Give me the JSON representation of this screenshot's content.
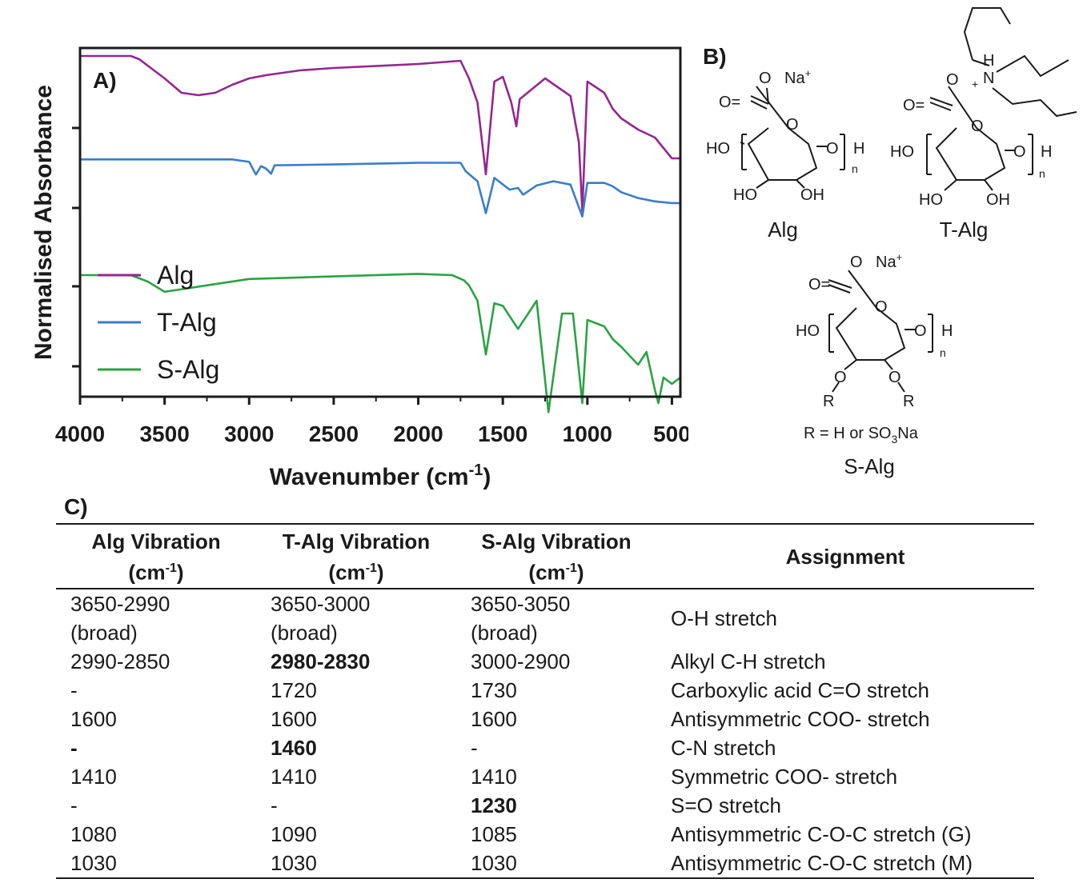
{
  "panel_labels": {
    "a": "A)",
    "b": "B)",
    "c": "C)"
  },
  "chart_data": {
    "type": "line",
    "title": "",
    "xlabel": "Wavenumber (cm-1)",
    "ylabel": "Normalised Absorbance",
    "xlim": [
      4000,
      450
    ],
    "x_ticks": [
      "4000",
      "3500",
      "3000",
      "2500",
      "2000",
      "1500",
      "1000",
      "500"
    ],
    "legend_position": "left-bottom",
    "series": [
      {
        "name": "Alg",
        "color": "#93278f",
        "x": [
          4000,
          3700,
          3650,
          3500,
          3400,
          3300,
          3200,
          3100,
          3000,
          2900,
          2700,
          2500,
          2000,
          1750,
          1700,
          1650,
          1600,
          1550,
          1500,
          1450,
          1420,
          1400,
          1250,
          1100,
          1050,
          1030,
          1000,
          900,
          850,
          800,
          700,
          600,
          500,
          450
        ],
        "y": [
          0.99,
          0.99,
          0.97,
          0.85,
          0.76,
          0.745,
          0.76,
          0.81,
          0.85,
          0.87,
          0.9,
          0.915,
          0.94,
          0.96,
          0.85,
          0.7,
          0.25,
          0.83,
          0.86,
          0.7,
          0.55,
          0.72,
          0.85,
          0.74,
          0.45,
          0.02,
          0.83,
          0.76,
          0.66,
          0.6,
          0.53,
          0.48,
          0.35,
          0.35
        ]
      },
      {
        "name": "T-Alg",
        "color": "#3a7dc9",
        "x": [
          4000,
          3500,
          3100,
          3000,
          2960,
          2930,
          2900,
          2870,
          2850,
          2500,
          2000,
          1750,
          1720,
          1650,
          1600,
          1550,
          1460,
          1410,
          1380,
          1300,
          1200,
          1100,
          1030,
          1000,
          900,
          850,
          800,
          700,
          600,
          500,
          450
        ],
        "y": [
          0.74,
          0.74,
          0.74,
          0.71,
          0.56,
          0.66,
          0.63,
          0.57,
          0.67,
          0.68,
          0.7,
          0.7,
          0.6,
          0.48,
          0.1,
          0.52,
          0.38,
          0.4,
          0.32,
          0.43,
          0.48,
          0.44,
          0.06,
          0.46,
          0.46,
          0.42,
          0.35,
          0.28,
          0.24,
          0.22,
          0.22
        ]
      },
      {
        "name": "S-Alg",
        "color": "#2aa342",
        "x": [
          4000,
          3700,
          3600,
          3500,
          3400,
          3200,
          3000,
          2500,
          2000,
          1800,
          1730,
          1700,
          1650,
          1600,
          1550,
          1500,
          1410,
          1300,
          1230,
          1150,
          1085,
          1030,
          1000,
          900,
          850,
          800,
          700,
          650,
          600,
          580,
          550,
          500,
          450
        ],
        "y": [
          0.5,
          0.5,
          0.45,
          0.37,
          0.39,
          0.43,
          0.47,
          0.49,
          0.51,
          0.5,
          0.46,
          0.42,
          0.3,
          -0.12,
          0.28,
          0.26,
          0.08,
          0.3,
          -0.57,
          0.2,
          0.2,
          -0.5,
          0.15,
          0.1,
          0.0,
          -0.06,
          -0.2,
          -0.1,
          -0.4,
          -0.5,
          -0.3,
          -0.35,
          -0.3
        ]
      }
    ]
  },
  "structures": {
    "alg": {
      "name": "Alg",
      "o_minus": "O",
      "na": "Na",
      "na_sup": "+",
      "o_eq": "O=",
      "ho_left": "HO",
      "o_h": "O",
      "h": "H",
      "n": "n",
      "ring_o": "O",
      "ho_bottom": "HO",
      "oh_bottom": "OH"
    },
    "talg": {
      "name": "T-Alg",
      "o_minus": "O",
      "o_eq": "O=",
      "ho_left": "HO",
      "o_h": "O",
      "h": "H",
      "n": "n",
      "ring_o": "O",
      "ho_bottom": "HO",
      "oh_bottom": "OH",
      "amm_h": "H",
      "amm_n": "N",
      "amm_plus": "+"
    },
    "salg": {
      "name": "S-Alg",
      "o_minus": "O",
      "na": "Na",
      "na_sup": "+",
      "o_eq": "O=",
      "ho_left": "HO",
      "o_h": "O",
      "h": "H",
      "n": "n",
      "ring_o": "O",
      "o_left": "O",
      "o_right": "O",
      "r_left": "R",
      "r_right": "R",
      "r_def_a": "R = H or SO",
      "r_def_sub": "3",
      "r_def_b": "Na"
    }
  },
  "table": {
    "headers": [
      {
        "line1": "Alg Vibration",
        "line2a": "(cm",
        "sup": "-1",
        "line2b": ")"
      },
      {
        "line1": "T-Alg Vibration",
        "line2a": "(cm",
        "sup": "-1",
        "line2b": ")"
      },
      {
        "line1": "S-Alg Vibration",
        "line2a": "(cm",
        "sup": "-1",
        "line2b": ")"
      },
      {
        "line1": "Assignment"
      }
    ],
    "rows": [
      {
        "alg": "3650-2990\n(broad)",
        "talg": "3650-3000\n(broad)",
        "salg": "3650-3050\n(broad)",
        "assign": "O-H stretch"
      },
      {
        "alg": "2990-2850",
        "talg": "2980-2830",
        "salg": "3000-2900",
        "assign": "Alkyl C-H stretch"
      },
      {
        "alg": "-",
        "talg": "1720",
        "salg": "1730",
        "assign": "Carboxylic acid C=O stretch"
      },
      {
        "alg": "1600",
        "talg": "1600",
        "salg": "1600",
        "assign": "Antisymmetric COO- stretch"
      },
      {
        "alg": "-",
        "talg": "1460",
        "salg": "-",
        "assign": "C-N stretch"
      },
      {
        "alg": "1410",
        "talg": "1410",
        "salg": "1410",
        "assign": "Symmetric COO- stretch"
      },
      {
        "alg": "-",
        "talg": "-",
        "salg": "1230",
        "assign": "S=O stretch"
      },
      {
        "alg": "1080",
        "talg": "1090",
        "salg": "1085",
        "assign": "Antisymmetric C-O-C stretch (G)"
      },
      {
        "alg": "1030",
        "talg": "1030",
        "salg": "1030",
        "assign": "Antisymmetric C-O-C stretch (M)"
      }
    ]
  }
}
